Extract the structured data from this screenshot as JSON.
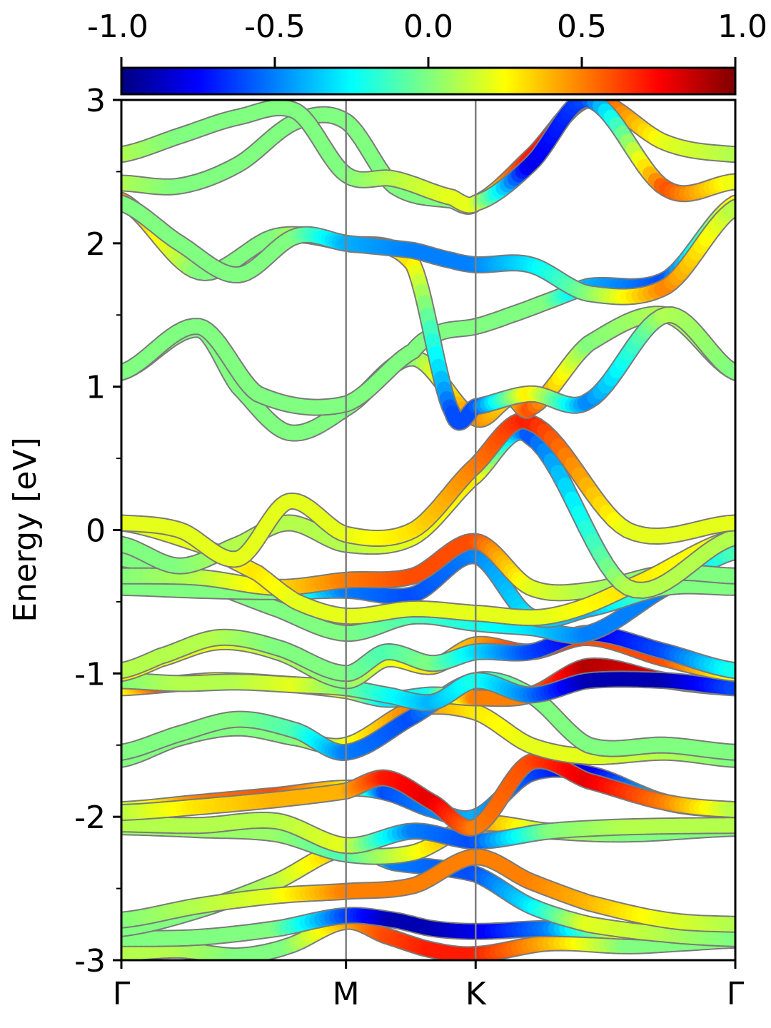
{
  "chart_data": {
    "type": "line",
    "ylabel": "Energy [eV]",
    "ylim": [
      -3,
      3
    ],
    "yticks": [
      -3,
      -2,
      -1,
      0,
      1,
      2,
      3
    ],
    "ytick_labels": [
      "-3",
      "-2",
      "-1",
      "0",
      "1",
      "2",
      "3"
    ],
    "kpath": [
      "Γ",
      "M",
      "K",
      "Γ"
    ],
    "kpath_positions": [
      0,
      0.577,
      0.91,
      1.577
    ],
    "xlim": [
      0,
      1.577
    ],
    "colorbar": {
      "range": [
        -1.0,
        1.0
      ],
      "ticks": [
        -1.0,
        -0.5,
        0.0,
        0.5,
        1.0
      ],
      "tick_labels": [
        "-1.0",
        "-0.5",
        "0.0",
        "0.5",
        "1.0"
      ],
      "colormap": "jet"
    },
    "grid": false,
    "bands": [
      {
        "k": [
          0,
          0.15,
          0.3,
          0.43,
          0.577,
          0.68,
          0.8,
          0.91,
          1.1,
          1.3,
          1.45,
          1.577
        ],
        "energy": [
          -2.95,
          -2.93,
          -2.97,
          -2.9,
          -2.73,
          -2.83,
          -2.93,
          -2.96,
          -2.88,
          -2.9,
          -2.88,
          -2.86
        ],
        "proj": [
          0.1,
          0.1,
          0.0,
          0.0,
          0.4,
          0.6,
          0.7,
          0.7,
          0.4,
          0.0,
          0.0,
          0.0
        ]
      },
      {
        "k": [
          0,
          0.2,
          0.4,
          0.577,
          0.7,
          0.8,
          0.91,
          1.1,
          1.3,
          1.577
        ],
        "energy": [
          -2.85,
          -2.84,
          -2.78,
          -2.69,
          -2.72,
          -2.78,
          -2.8,
          -2.78,
          -2.8,
          -2.83
        ],
        "proj": [
          0.0,
          0.0,
          0.0,
          -0.6,
          -0.9,
          -0.9,
          -0.8,
          -0.5,
          0.3,
          0.0
        ]
      },
      {
        "k": [
          0,
          0.2,
          0.4,
          0.577,
          0.7,
          0.91,
          1.05,
          1.2,
          1.4,
          1.577
        ],
        "energy": [
          -2.78,
          -2.65,
          -2.45,
          -2.22,
          -2.32,
          -2.4,
          -2.62,
          -2.75,
          -2.82,
          -2.85
        ],
        "proj": [
          0.0,
          0.0,
          0.1,
          0.4,
          -0.5,
          -0.6,
          -0.3,
          0.2,
          0.1,
          0.0
        ]
      },
      {
        "k": [
          0,
          0.2,
          0.4,
          0.577,
          0.75,
          0.91,
          1.05,
          1.2,
          1.4,
          1.577
        ],
        "energy": [
          -2.72,
          -2.62,
          -2.55,
          -2.52,
          -2.48,
          -2.28,
          -2.45,
          -2.6,
          -2.72,
          -2.75
        ],
        "proj": [
          0.0,
          0.1,
          0.2,
          0.5,
          0.5,
          0.5,
          0.5,
          0.4,
          0.2,
          0.1
        ]
      },
      {
        "k": [
          0,
          0.2,
          0.4,
          0.577,
          0.75,
          0.91,
          1.1,
          1.3,
          1.577
        ],
        "energy": [
          -2.07,
          -2.09,
          -2.12,
          -2.26,
          -2.25,
          -2.05,
          -2.1,
          -2.12,
          -2.08
        ],
        "proj": [
          0.05,
          0.05,
          0.05,
          -0.1,
          0.2,
          0.5,
          0.1,
          0.0,
          0.0
        ]
      },
      {
        "k": [
          0,
          0.2,
          0.4,
          0.577,
          0.75,
          0.91,
          1.1,
          1.3,
          1.577
        ],
        "energy": [
          -2.05,
          -2.06,
          -2.03,
          -2.2,
          -2.1,
          -2.17,
          -2.1,
          -2.07,
          -2.06
        ],
        "proj": [
          0.1,
          0.1,
          0.1,
          0.2,
          -0.5,
          -0.6,
          0.0,
          0.1,
          0.1
        ]
      },
      {
        "k": [
          0,
          0.2,
          0.4,
          0.577,
          0.68,
          0.8,
          0.91,
          1.05,
          1.2,
          1.4,
          1.577
        ],
        "energy": [
          -1.95,
          -1.9,
          -1.85,
          -1.8,
          -1.83,
          -1.95,
          -2.0,
          -1.7,
          -1.7,
          -1.9,
          -1.95
        ],
        "proj": [
          0.1,
          0.5,
          0.6,
          0.3,
          -0.6,
          -0.5,
          -0.4,
          -0.6,
          -0.8,
          -0.3,
          0.1
        ]
      },
      {
        "k": [
          0,
          0.2,
          0.4,
          0.577,
          0.68,
          0.8,
          0.91,
          1.05,
          1.2,
          1.4,
          1.577
        ],
        "energy": [
          -1.97,
          -1.93,
          -1.88,
          -1.82,
          -1.73,
          -1.9,
          -2.07,
          -1.62,
          -1.75,
          -1.9,
          -1.95
        ],
        "proj": [
          0.1,
          0.3,
          0.4,
          0.4,
          0.7,
          0.8,
          0.5,
          0.6,
          0.8,
          0.5,
          0.1
        ]
      },
      {
        "k": [
          0,
          0.15,
          0.3,
          0.45,
          0.577,
          0.75,
          0.91,
          1.05,
          1.2,
          1.4,
          1.577
        ],
        "energy": [
          -1.6,
          -1.45,
          -1.38,
          -1.45,
          -1.5,
          -1.25,
          -1.27,
          -1.5,
          -1.58,
          -1.55,
          -1.6
        ],
        "proj": [
          0.0,
          0.0,
          0.0,
          0.0,
          0.2,
          0.5,
          0.3,
          0.2,
          0.2,
          0.1,
          0.0
        ]
      },
      {
        "k": [
          0,
          0.15,
          0.3,
          0.45,
          0.577,
          0.75,
          0.91,
          1.05,
          1.2,
          1.4,
          1.577
        ],
        "energy": [
          -1.55,
          -1.42,
          -1.32,
          -1.4,
          -1.55,
          -1.3,
          -1.05,
          -1.15,
          -1.5,
          -1.5,
          -1.55
        ],
        "proj": [
          0.0,
          0.0,
          0.0,
          -0.1,
          -0.5,
          -0.6,
          -0.2,
          0.0,
          0.0,
          0.0,
          0.0
        ]
      },
      {
        "k": [
          0,
          0.1,
          0.25,
          0.45,
          0.577,
          0.68,
          0.8,
          0.91,
          1.05,
          1.2,
          1.4,
          1.577
        ],
        "energy": [
          -1.1,
          -1.08,
          -1.05,
          -1.08,
          -1.12,
          -1.18,
          -1.15,
          -1.17,
          -1.15,
          -0.95,
          -1.05,
          -1.1
        ],
        "proj": [
          0.2,
          0.6,
          0.2,
          0.3,
          0.2,
          -0.3,
          -0.2,
          0.5,
          0.5,
          0.9,
          0.8,
          0.5
        ]
      },
      {
        "k": [
          0,
          0.15,
          0.3,
          0.45,
          0.577,
          0.68,
          0.8,
          0.91,
          1.05,
          1.2,
          1.4,
          1.577
        ],
        "energy": [
          -1.05,
          -1.07,
          -1.06,
          -1.08,
          -1.1,
          -1.15,
          -1.2,
          -1.05,
          -1.15,
          -1.05,
          -1.05,
          -1.1
        ],
        "proj": [
          0.0,
          0.1,
          0.1,
          0.2,
          0.0,
          -0.2,
          -0.4,
          -0.2,
          -0.5,
          -0.9,
          -0.9,
          -0.6
        ]
      },
      {
        "k": [
          0,
          0.1,
          0.25,
          0.4,
          0.577,
          0.68,
          0.8,
          0.91,
          1.05,
          1.2,
          1.4,
          1.577
        ],
        "energy": [
          -1.0,
          -0.9,
          -0.78,
          -0.85,
          -1.05,
          -0.9,
          -0.95,
          -0.8,
          -0.85,
          -0.75,
          -0.9,
          -1.0
        ],
        "proj": [
          0.3,
          0.2,
          0.2,
          0.1,
          0.0,
          0.2,
          0.3,
          0.4,
          0.7,
          0.6,
          0.6,
          0.2
        ]
      },
      {
        "k": [
          0,
          0.1,
          0.25,
          0.4,
          0.577,
          0.68,
          0.8,
          0.91,
          1.05,
          1.2,
          1.4,
          1.577
        ],
        "energy": [
          -0.98,
          -0.88,
          -0.75,
          -0.82,
          -1.0,
          -0.85,
          -0.93,
          -0.85,
          -0.85,
          -0.72,
          -0.85,
          -0.98
        ],
        "proj": [
          0.1,
          0.1,
          0.1,
          0.0,
          0.0,
          -0.1,
          0.0,
          -0.3,
          -0.6,
          -0.8,
          -0.6,
          -0.2
        ]
      },
      {
        "k": [
          0,
          0.2,
          0.4,
          0.577,
          0.75,
          0.91,
          1.05,
          1.2,
          1.4,
          1.577
        ],
        "energy": [
          -0.2,
          -0.35,
          -0.55,
          -0.72,
          -0.6,
          -0.65,
          -0.68,
          -0.72,
          -0.4,
          -0.15
        ],
        "proj": [
          0.0,
          0.0,
          0.0,
          0.0,
          -0.1,
          -0.2,
          -0.3,
          -0.5,
          -0.5,
          -0.1
        ]
      },
      {
        "k": [
          0,
          0.2,
          0.4,
          0.577,
          0.75,
          0.91,
          1.05,
          1.2,
          1.4,
          1.577
        ],
        "energy": [
          -0.4,
          -0.42,
          -0.43,
          -0.42,
          -0.45,
          -0.18,
          -0.6,
          -0.55,
          -0.4,
          -0.4
        ],
        "proj": [
          0.0,
          0.0,
          0.0,
          -0.5,
          -0.6,
          -0.5,
          -0.3,
          -0.4,
          0.0,
          0.0
        ]
      },
      {
        "k": [
          0,
          0.2,
          0.4,
          0.577,
          0.75,
          0.91,
          1.05,
          1.2,
          1.4,
          1.577
        ],
        "energy": [
          -0.32,
          -0.33,
          -0.4,
          -0.35,
          -0.32,
          -0.08,
          -0.4,
          -0.42,
          -0.3,
          -0.32
        ],
        "proj": [
          0.0,
          0.1,
          0.3,
          0.5,
          0.6,
          0.6,
          0.2,
          0.1,
          0.0,
          0.0
        ]
      },
      {
        "k": [
          0,
          0.2,
          0.35,
          0.45,
          0.577,
          0.75,
          0.91,
          1.1,
          1.3,
          1.577
        ],
        "energy": [
          0.05,
          -0.1,
          -0.3,
          -0.5,
          -0.6,
          -0.55,
          -0.58,
          -0.6,
          -0.4,
          -0.05
        ],
        "proj": [
          0.2,
          0.2,
          0.3,
          0.2,
          0.2,
          0.2,
          0.2,
          0.2,
          0.3,
          0.2
        ]
      },
      {
        "k": [
          0,
          0.15,
          0.3,
          0.43,
          0.577,
          0.75,
          0.91,
          1.05,
          1.3,
          1.577
        ],
        "energy": [
          -0.1,
          -0.25,
          -0.1,
          0.05,
          -0.1,
          -0.05,
          0.38,
          0.65,
          -0.4,
          -0.05
        ],
        "proj": [
          0.0,
          0.0,
          0.1,
          0.1,
          0.1,
          0.2,
          0.3,
          -0.6,
          0.1,
          0.1
        ]
      },
      {
        "k": [
          0,
          0.15,
          0.3,
          0.43,
          0.577,
          0.75,
          0.91,
          1.05,
          1.3,
          1.577
        ],
        "energy": [
          0.05,
          0.0,
          -0.2,
          0.2,
          -0.03,
          0.0,
          0.45,
          0.75,
          0.0,
          0.05
        ],
        "proj": [
          0.2,
          0.2,
          0.2,
          0.2,
          0.2,
          0.3,
          0.5,
          0.7,
          0.2,
          0.2
        ]
      },
      {
        "k": [
          0,
          0.2,
          0.3,
          0.43,
          0.577,
          0.75,
          0.91,
          1.0,
          1.05,
          1.2,
          1.4,
          1.577
        ],
        "energy": [
          1.1,
          1.4,
          1.0,
          0.68,
          0.85,
          1.2,
          0.78,
          0.92,
          0.85,
          1.3,
          1.5,
          1.1
        ],
        "proj": [
          0.0,
          0.0,
          0.0,
          0.0,
          0.0,
          0.0,
          0.5,
          0.3,
          0.6,
          0.0,
          0.1,
          0.0
        ]
      },
      {
        "k": [
          0,
          0.2,
          0.35,
          0.577,
          0.75,
          0.82,
          0.91,
          1.0,
          1.1,
          1.2,
          1.4,
          1.577
        ],
        "energy": [
          1.1,
          1.42,
          0.95,
          0.88,
          1.25,
          1.38,
          1.42,
          1.5,
          1.6,
          1.7,
          1.75,
          2.28
        ],
        "proj": [
          0.0,
          0.0,
          0.0,
          0.0,
          0.0,
          0.0,
          0.0,
          0.0,
          0.0,
          -0.4,
          -0.6,
          0.3
        ]
      },
      {
        "k": [
          0,
          0.2,
          0.4,
          0.577,
          0.75,
          0.85,
          0.91,
          1.05,
          1.2,
          1.4,
          1.577
        ],
        "energy": [
          2.3,
          1.8,
          2.05,
          2.0,
          1.85,
          0.82,
          0.86,
          0.95,
          0.9,
          1.5,
          1.1
        ],
        "proj": [
          0.5,
          0.0,
          0.0,
          0.3,
          0.3,
          -0.6,
          -0.6,
          0.3,
          -0.5,
          0.1,
          0.0
        ]
      },
      {
        "k": [
          0,
          0.15,
          0.3,
          0.45,
          0.577,
          0.75,
          0.85,
          0.91,
          1.05,
          1.2,
          1.4,
          1.577
        ],
        "energy": [
          2.28,
          2.0,
          1.78,
          2.05,
          2.0,
          1.95,
          1.88,
          1.85,
          1.85,
          1.65,
          1.7,
          2.25
        ],
        "proj": [
          0.0,
          0.0,
          0.0,
          0.0,
          -0.4,
          -0.5,
          -0.5,
          -0.5,
          -0.3,
          0.0,
          0.5,
          0.1
        ]
      },
      {
        "k": [
          0,
          0.15,
          0.3,
          0.45,
          0.577,
          0.7,
          0.85,
          0.91,
          1.05,
          1.2,
          1.4,
          1.577
        ],
        "energy": [
          2.42,
          2.4,
          2.55,
          2.85,
          2.85,
          2.4,
          2.3,
          2.28,
          2.6,
          3.0,
          2.7,
          2.62
        ],
        "proj": [
          0.1,
          0.0,
          0.0,
          0.0,
          0.0,
          0.0,
          0.0,
          0.2,
          0.7,
          0.7,
          0.2,
          0.1
        ]
      },
      {
        "k": [
          0,
          0.15,
          0.3,
          0.45,
          0.577,
          0.7,
          0.85,
          0.91,
          1.05,
          1.2,
          1.4,
          1.577
        ],
        "energy": [
          2.62,
          2.75,
          2.88,
          2.92,
          2.48,
          2.45,
          2.32,
          2.28,
          2.55,
          3.0,
          2.38,
          2.43
        ],
        "proj": [
          0.1,
          0.0,
          0.0,
          0.0,
          0.0,
          0.1,
          0.2,
          0.2,
          -0.8,
          -0.6,
          0.6,
          0.2
        ]
      }
    ]
  }
}
